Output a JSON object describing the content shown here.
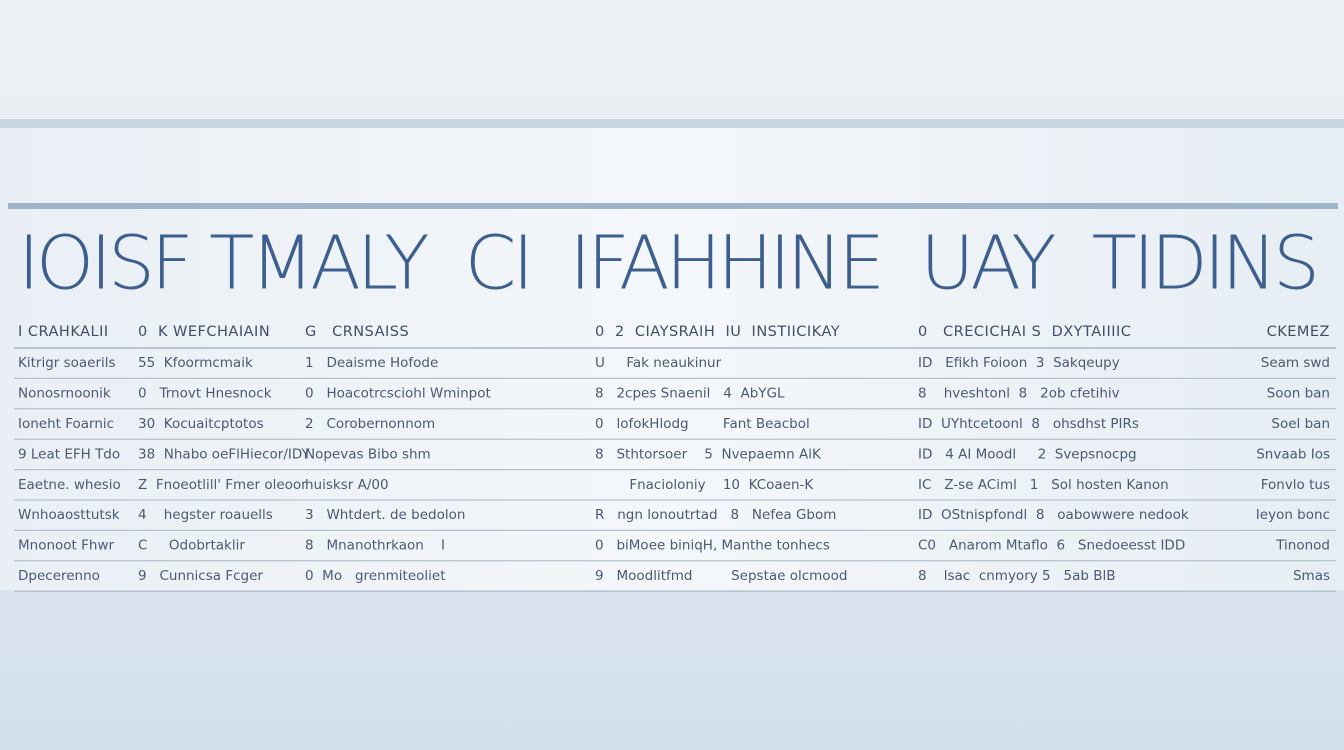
{
  "header": {
    "title": "IOISF TMALY  CI  IFAHHINE  UAY  TIDINS"
  },
  "table": {
    "columns": [
      "I CRAHKALII",
      "0  K WEFCHAIAIN",
      "G   CRNSAISS",
      "0  2  CIAYSRAIH  IU  INSTIICIKAY",
      "0   CRECICHAI S  DXYTAIIIIC",
      "CKEMEZ"
    ],
    "rows": [
      [
        "Kitrigr soaerils",
        "55  Kfoormcmaik",
        "1   Deaisme Hofode",
        "U     Fak neaukinur",
        "ID   Efikh Foioon  3  Sakqeupy",
        "Seam swd"
      ],
      [
        "Nonosrnoonik",
        "0   Trnovt Hnesnock",
        "0   Hoacotrcsciohl Wminpot",
        "8   2cpes Snaenil   4  AbYGL",
        "8    hveshtonl  8   2ob cfetihiv",
        "Soon ban"
      ],
      [
        "Ioneht Foarnic",
        "30  Kocuaitcptotos",
        "2   Corobernonnom",
        "0   lofokHlodg        Fant Beacbol",
        "ID  UYhtcetoonl  8   ohsdhst PIRs",
        "Soel ban"
      ],
      [
        "9 Leat EFH Tdo",
        "38  Nhabo oeFlHiecor/IDY",
        "Nopevas Bibo shm",
        "8   Sthtorsoer    5  Nvepaemn AlK",
        "ID   4 AI Moodl     2  Svepsnocpg",
        "Snvaab Ios"
      ],
      [
        "Eaetne. whesio",
        "Z  Fnoeotlill' Fmer oleoor",
        "huisksr A/00",
        "        Fnacioloniy    10  KCoaen-K",
        "IC   Z-se ACiml   1   Sol hosten Kanon",
        "Fonvlo tus"
      ],
      [
        "Wnhoaosttutsk",
        "4    hegster roauells",
        "3   Whtdert. de bedolon",
        "R   ngn lonoutrtad   8   Nefea Gbom",
        "ID  OStnispfondl  8   oabowwere nedook",
        "Ieyon bonc"
      ],
      [
        "Mnonoot Fhwr",
        "C     Odobrtaklir",
        "8   Mnanothrkaon    I",
        "0   biMoee biniqH, Manthe tonhecs",
        "C0   Anarom Mtaflo  6   Snedoeesst IDD",
        "Tinonod"
      ],
      [
        "Dpecerenno",
        "9   Cunnicsa Fcger",
        "0  Mo   grenmiteoliet",
        "9   Moodlitfmd         Sepstae olcmood",
        "8    lsac  cnmyory 5   5ab BlB",
        "Smas"
      ]
    ]
  }
}
